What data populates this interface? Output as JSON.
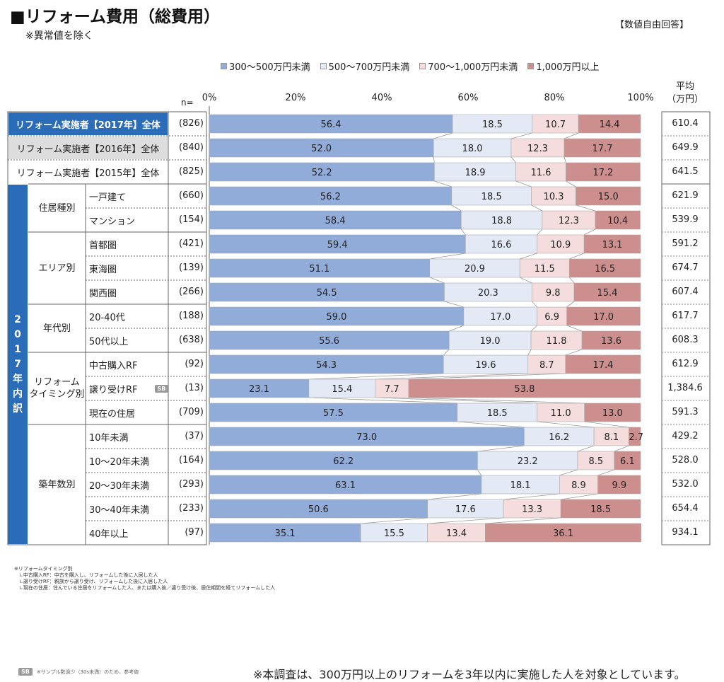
{
  "title": "■リフォーム費用（総費用）",
  "subnote": "※異常値を除く",
  "badge": "【数値自由回答】",
  "n_header": "n=",
  "avg_header": [
    "平均",
    "（万円）"
  ],
  "side_label": [
    "2",
    "0",
    "1",
    "7",
    "年",
    "内",
    "訳"
  ],
  "groups": [
    {
      "label": "住居種別",
      "rows": [
        3,
        4
      ]
    },
    {
      "label": "エリア別",
      "rows": [
        5,
        7
      ]
    },
    {
      "label": "年代別",
      "rows": [
        8,
        9
      ]
    },
    {
      "label": "リフォーム\nタイミング別",
      "rows": [
        10,
        12
      ]
    },
    {
      "label": "築年数別",
      "rows": [
        13,
        17
      ]
    }
  ],
  "colors": {
    "s1": "#91acd8",
    "s2": "#e3e9f5",
    "s3": "#f4dddc",
    "s4": "#cd8f8d",
    "highlight": "#2b6cb8"
  },
  "chart_data": {
    "type": "bar",
    "stacked": true,
    "orientation": "horizontal",
    "xlim": [
      0,
      100
    ],
    "xticks": [
      "0%",
      "20%",
      "40%",
      "60%",
      "80%",
      "100%"
    ],
    "legend": [
      "300～500万円未満",
      "500～700万円未満",
      "700～1,000万円未満",
      "1,000万円以上"
    ],
    "legend_position": "top",
    "rows": [
      {
        "label": "リフォーム実施者【2017年】全体",
        "n": "(826)",
        "values": [
          56.4,
          18.5,
          10.7,
          14.4
        ],
        "labels": [
          "56.4",
          "18.5",
          "10.7",
          "14.4"
        ],
        "avg": "610.4"
      },
      {
        "label": "リフォーム実施者【2016年】全体",
        "n": "(840)",
        "values": [
          52.0,
          18.0,
          12.3,
          17.7
        ],
        "labels": [
          "52.0",
          "18.0",
          "12.3",
          "17.7"
        ],
        "avg": "649.9"
      },
      {
        "label": "リフォーム実施者【2015年】全体",
        "n": "(825)",
        "values": [
          52.2,
          18.9,
          11.6,
          17.2
        ],
        "labels": [
          "52.2",
          "18.9",
          "11.6",
          "17.2"
        ],
        "avg": "641.5"
      },
      {
        "label": "一戸建て",
        "n": "(660)",
        "values": [
          56.2,
          18.5,
          10.3,
          15.0
        ],
        "labels": [
          "56.2",
          "18.5",
          "10.3",
          "15.0"
        ],
        "avg": "621.9"
      },
      {
        "label": "マンション",
        "n": "(154)",
        "values": [
          58.4,
          18.8,
          12.3,
          10.4
        ],
        "labels": [
          "58.4",
          "18.8",
          "12.3",
          "10.4"
        ],
        "avg": "539.9"
      },
      {
        "label": "首都圏",
        "n": "(421)",
        "values": [
          59.4,
          16.6,
          10.9,
          13.1
        ],
        "labels": [
          "59.4",
          "16.6",
          "10.9",
          "13.1"
        ],
        "avg": "591.2"
      },
      {
        "label": "東海圏",
        "n": "(139)",
        "values": [
          51.1,
          20.9,
          11.5,
          16.5
        ],
        "labels": [
          "51.1",
          "20.9",
          "11.5",
          "16.5"
        ],
        "avg": "674.7"
      },
      {
        "label": "関西圏",
        "n": "(266)",
        "values": [
          54.5,
          20.3,
          9.8,
          15.4
        ],
        "labels": [
          "54.5",
          "20.3",
          "9.8",
          "15.4"
        ],
        "avg": "607.4"
      },
      {
        "label": "20-40代",
        "n": "(188)",
        "values": [
          59.0,
          17.0,
          6.9,
          17.0
        ],
        "labels": [
          "59.0",
          "17.0",
          "6.9",
          "17.0"
        ],
        "avg": "617.7"
      },
      {
        "label": "50代以上",
        "n": "(638)",
        "values": [
          55.6,
          19.0,
          11.8,
          13.6
        ],
        "labels": [
          "55.6",
          "19.0",
          "11.8",
          "13.6"
        ],
        "avg": "608.3"
      },
      {
        "label": "中古購入RF",
        "n": "(92)",
        "values": [
          54.3,
          19.6,
          8.7,
          17.4
        ],
        "labels": [
          "54.3",
          "19.6",
          "8.7",
          "17.4"
        ],
        "avg": "612.9"
      },
      {
        "label": "譲り受けRF",
        "sb": "SB",
        "n": "(13)",
        "values": [
          23.1,
          15.4,
          7.7,
          53.8
        ],
        "labels": [
          "23.1",
          "15.4",
          "7.7",
          "53.8"
        ],
        "avg": "1,384.6"
      },
      {
        "label": "現在の住居",
        "n": "(709)",
        "values": [
          57.5,
          18.5,
          11.0,
          13.0
        ],
        "labels": [
          "57.5",
          "18.5",
          "11.0",
          "13.0"
        ],
        "avg": "591.3"
      },
      {
        "label": "10年未満",
        "n": "(37)",
        "values": [
          73.0,
          16.2,
          8.1,
          2.7
        ],
        "labels": [
          "73.0",
          "16.2",
          "8.1",
          "2.7"
        ],
        "avg": "429.2"
      },
      {
        "label": "10～20年未満",
        "n": "(164)",
        "values": [
          62.2,
          23.2,
          8.5,
          6.1
        ],
        "labels": [
          "62.2",
          "23.2",
          "8.5",
          "6.1"
        ],
        "avg": "528.0"
      },
      {
        "label": "20～30年未満",
        "n": "(293)",
        "values": [
          63.1,
          18.1,
          8.9,
          9.9
        ],
        "labels": [
          "63.1",
          "18.1",
          "8.9",
          "9.9"
        ],
        "avg": "532.0"
      },
      {
        "label": "30～40年未満",
        "n": "(233)",
        "values": [
          50.6,
          17.6,
          13.3,
          18.5
        ],
        "labels": [
          "50.6",
          "17.6",
          "13.3",
          "18.5"
        ],
        "avg": "654.4"
      },
      {
        "label": "40年以上",
        "n": "(97)",
        "values": [
          35.1,
          15.5,
          13.4,
          36.1
        ],
        "labels": [
          "35.1",
          "15.5",
          "13.4",
          "36.1"
        ],
        "avg": "934.1"
      }
    ]
  },
  "footnotes": [
    "※リフォームタイミング別",
    "　∟中古購入RF：中古を購入し、リフォームした後に入居した人",
    "　∟譲り受けRF：親族から譲り受け、リフォームした後に入居した人",
    "　∟現在の住居：住んでいる住居をリフォームした人、または購入後／譲り受け後、居住期間を経てリフォームした人"
  ],
  "sb_note": {
    "badge": "SB",
    "text": "※サンプル数過少（30s未満）のため、参考値"
  },
  "survey_note": "※本調査は、300万円以上のリフォームを3年以内に実施した人を対象としています。"
}
